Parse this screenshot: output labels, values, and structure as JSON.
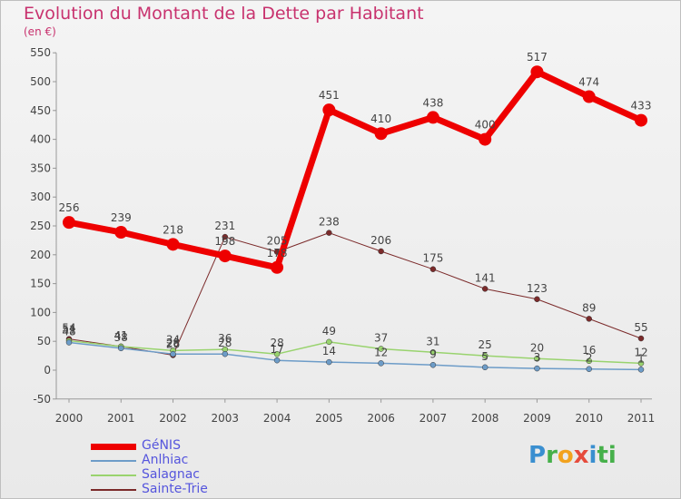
{
  "title": "Evolution du Montant de la Dette par Habitant",
  "subtitle": "(en €)",
  "logo_text": "Proxiti",
  "chart_data": {
    "type": "line",
    "title": "Evolution du Montant de la Dette par Habitant",
    "subtitle": "(en €)",
    "x": [
      "2000",
      "2001",
      "2002",
      "2003",
      "2004",
      "2005",
      "2006",
      "2007",
      "2008",
      "2009",
      "2010",
      "2011"
    ],
    "yticks": [
      "-50",
      "0",
      "50",
      "100",
      "150",
      "200",
      "250",
      "300",
      "350",
      "400",
      "450",
      "500",
      "550"
    ],
    "ylim": [
      -50,
      550
    ],
    "grid": false,
    "legend_position": "bottom-left",
    "series": [
      {
        "name": "GéNIS",
        "color": "#ee0000",
        "width": 7,
        "values": [
          256,
          239,
          218,
          198,
          178,
          451,
          410,
          438,
          400,
          517,
          474,
          433
        ],
        "labels": [
          "256",
          "239",
          "218",
          "198",
          "178",
          "451",
          "410",
          "438",
          "400",
          "517",
          "474",
          "433"
        ]
      },
      {
        "name": "Anlhiac",
        "color": "#6d9cc8",
        "width": 1.5,
        "values": [
          48,
          38,
          28,
          28,
          17,
          14,
          12,
          9,
          5,
          3,
          2,
          1
        ],
        "labels": [
          "48",
          "38",
          "28",
          "28",
          "17",
          "14",
          "12",
          "9",
          "5",
          "3",
          "2",
          "1"
        ]
      },
      {
        "name": "Salagnac",
        "color": "#99d36e",
        "width": 1.5,
        "values": [
          51,
          41,
          34,
          36,
          28,
          49,
          37,
          31,
          25,
          20,
          16,
          12
        ],
        "labels": [
          "51",
          "41",
          "34",
          "36",
          "28",
          "49",
          "37",
          "31",
          "25",
          "20",
          "16",
          "12"
        ]
      },
      {
        "name": "Sainte-Trie",
        "color": "#7b2a2a",
        "width": 1,
        "values": [
          54,
          41,
          26,
          231,
          205,
          238,
          206,
          175,
          141,
          123,
          89,
          55
        ],
        "labels": [
          "54",
          "41",
          "26",
          "231",
          "205",
          "238",
          "206",
          "175",
          "141",
          "123",
          "89",
          "55"
        ]
      }
    ]
  }
}
